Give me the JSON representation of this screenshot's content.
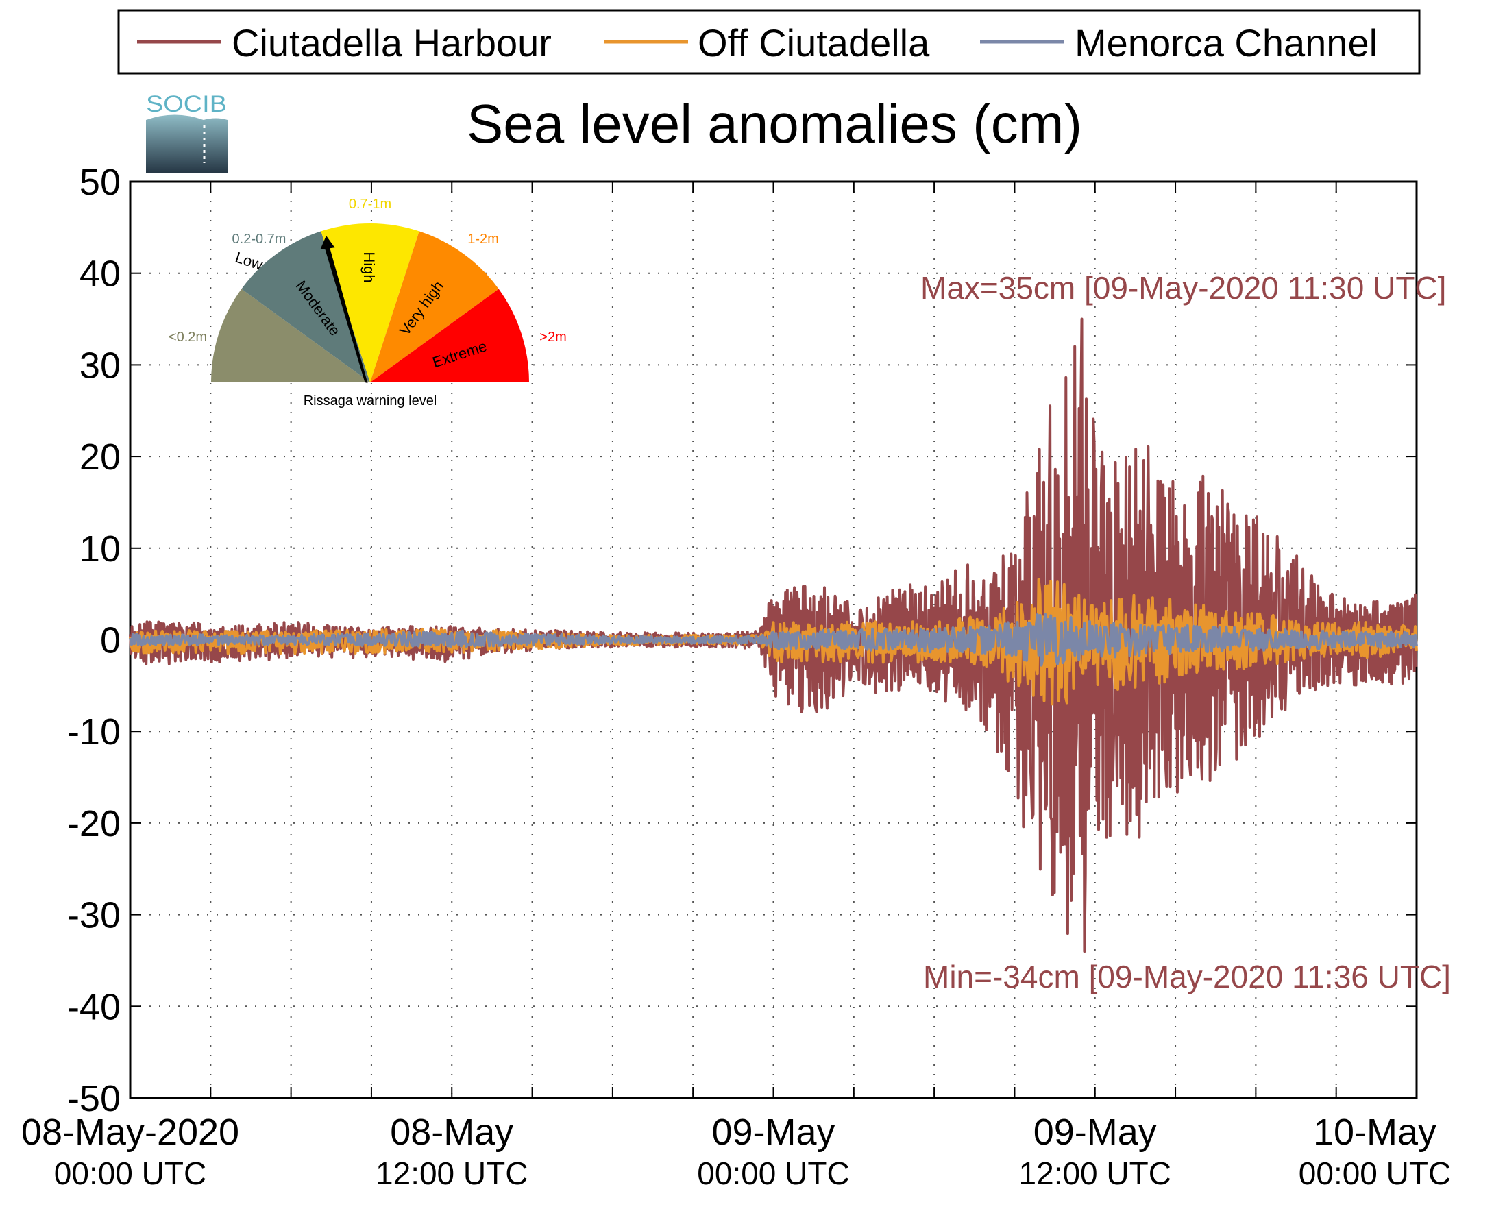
{
  "legend": {
    "entries": [
      {
        "label": "Ciutadella Harbour",
        "color": "#96474a"
      },
      {
        "label": "Off Ciutadella",
        "color": "#e8952e"
      },
      {
        "label": "Menorca Channel",
        "color": "#7b87a8"
      }
    ]
  },
  "logo": {
    "text": "SOCIB"
  },
  "gauge": {
    "caption": "Rissaga warning level",
    "needle_level": "Moderate",
    "segments": [
      {
        "name": "Low",
        "range": "<0.2m",
        "color": "#8b8d6b",
        "range_color": "#7d7f5d"
      },
      {
        "name": "Moderate",
        "range": "0.2-0.7m",
        "color": "#5f7b7a",
        "range_color": "#5f7b7a"
      },
      {
        "name": "High",
        "range": "0.7-1m",
        "color": "#fde700",
        "range_color": "#f2d600"
      },
      {
        "name": "Very high",
        "range": "1-2m",
        "color": "#fe8a00",
        "range_color": "#ff8400"
      },
      {
        "name": "Extreme",
        "range": ">2m",
        "color": "#ff0000",
        "range_color": "#ff0000"
      }
    ]
  },
  "annotations": {
    "max_label": "Max=35cm [09-May-2020 11:30 UTC]",
    "min_label": "Min=-34cm [09-May-2020 11:36 UTC]",
    "color": "#96474a"
  },
  "chart_data": {
    "type": "line",
    "title": "Sea level anomalies (cm)",
    "xlabel": "",
    "ylabel": "",
    "ylim": [
      -50,
      50
    ],
    "y_ticks": [
      "50",
      "40",
      "30",
      "20",
      "10",
      "0",
      "-10",
      "-20",
      "-30",
      "-40",
      "-50"
    ],
    "xlim_hours": [
      0,
      48
    ],
    "x_tick_labels": [
      {
        "date": "08-May-2020",
        "time": "00:00 UTC",
        "hour": 0
      },
      {
        "date": "08-May",
        "time": "12:00 UTC",
        "hour": 12
      },
      {
        "date": "09-May",
        "time": "00:00 UTC",
        "hour": 24
      },
      {
        "date": "09-May",
        "time": "12:00 UTC",
        "hour": 36
      },
      {
        "date": "10-May",
        "time": "00:00 UTC",
        "hour": 48
      }
    ],
    "grid": true,
    "grid_style": "dotted",
    "legend_position": "top",
    "time_start": "08-May-2020 00:00 UTC",
    "time_end": "10-May-2020 00:00 UTC",
    "max": {
      "value": 35,
      "time": "09-May-2020 11:30 UTC"
    },
    "min": {
      "value": -34,
      "time": "09-May-2020 11:36 UTC"
    },
    "series": [
      {
        "name": "Ciutadella Harbour",
        "color": "#96474a",
        "envelope": {
          "hours": [
            0,
            2,
            4,
            6,
            8,
            10,
            12,
            14,
            16,
            18,
            20,
            22,
            23.5,
            24,
            25,
            26,
            27,
            28,
            29,
            30,
            31,
            32,
            33,
            34,
            35,
            35.5,
            36,
            37,
            38,
            39,
            40,
            41,
            42,
            43,
            44,
            45,
            46,
            47,
            48
          ],
          "upper": [
            2,
            2,
            1.5,
            2,
            1.5,
            1.5,
            1.5,
            1.2,
            1,
            0.8,
            0.8,
            0.7,
            1,
            6,
            6,
            6,
            4,
            5,
            6,
            6,
            8,
            9,
            10,
            24,
            35,
            31,
            24,
            20,
            22,
            17,
            18,
            16,
            14,
            11,
            8,
            5,
            4,
            5,
            5
          ],
          "lower": [
            -3,
            -2.5,
            -2.5,
            -2,
            -2,
            -2,
            -2.5,
            -1.5,
            -1,
            -0.8,
            -0.8,
            -0.8,
            -1,
            -6,
            -8,
            -8,
            -5,
            -6,
            -6,
            -6,
            -8,
            -10,
            -18,
            -26,
            -34,
            -28,
            -23,
            -22,
            -22,
            -18,
            -16,
            -14,
            -11,
            -8,
            -6,
            -5,
            -5,
            -5,
            -5
          ]
        }
      },
      {
        "name": "Off Ciutadella",
        "color": "#e8952e",
        "envelope": {
          "hours": [
            0,
            6,
            12,
            18,
            23.5,
            24,
            26,
            28,
            30,
            32,
            33,
            34,
            35,
            36,
            38,
            40,
            42,
            44,
            46,
            48
          ],
          "upper": [
            1,
            1,
            1.2,
            0.6,
            0.5,
            2,
            2,
            2,
            2,
            3,
            4,
            7,
            6,
            5,
            5,
            4,
            3,
            2,
            2,
            1.5
          ],
          "lower": [
            -1.5,
            -1.5,
            -1.5,
            -0.6,
            -0.5,
            -2.5,
            -2.5,
            -2.5,
            -2.5,
            -3,
            -5,
            -8,
            -7,
            -6,
            -5,
            -4,
            -3,
            -2,
            -2,
            -1.5
          ]
        }
      },
      {
        "name": "Menorca Channel",
        "color": "#7b87a8",
        "envelope": {
          "hours": [
            0,
            6,
            12,
            18,
            23.5,
            24,
            28,
            32,
            33,
            34,
            36,
            40,
            44,
            48
          ],
          "upper": [
            0.6,
            0.5,
            1,
            0.4,
            0.4,
            1,
            1.2,
            1.5,
            2,
            3,
            2,
            1.5,
            1,
            0.8
          ],
          "lower": [
            -0.6,
            -0.5,
            -0.8,
            -0.4,
            -0.4,
            -1,
            -1.2,
            -1.5,
            -2,
            -3,
            -2,
            -1.5,
            -1,
            -0.8
          ]
        }
      }
    ]
  }
}
